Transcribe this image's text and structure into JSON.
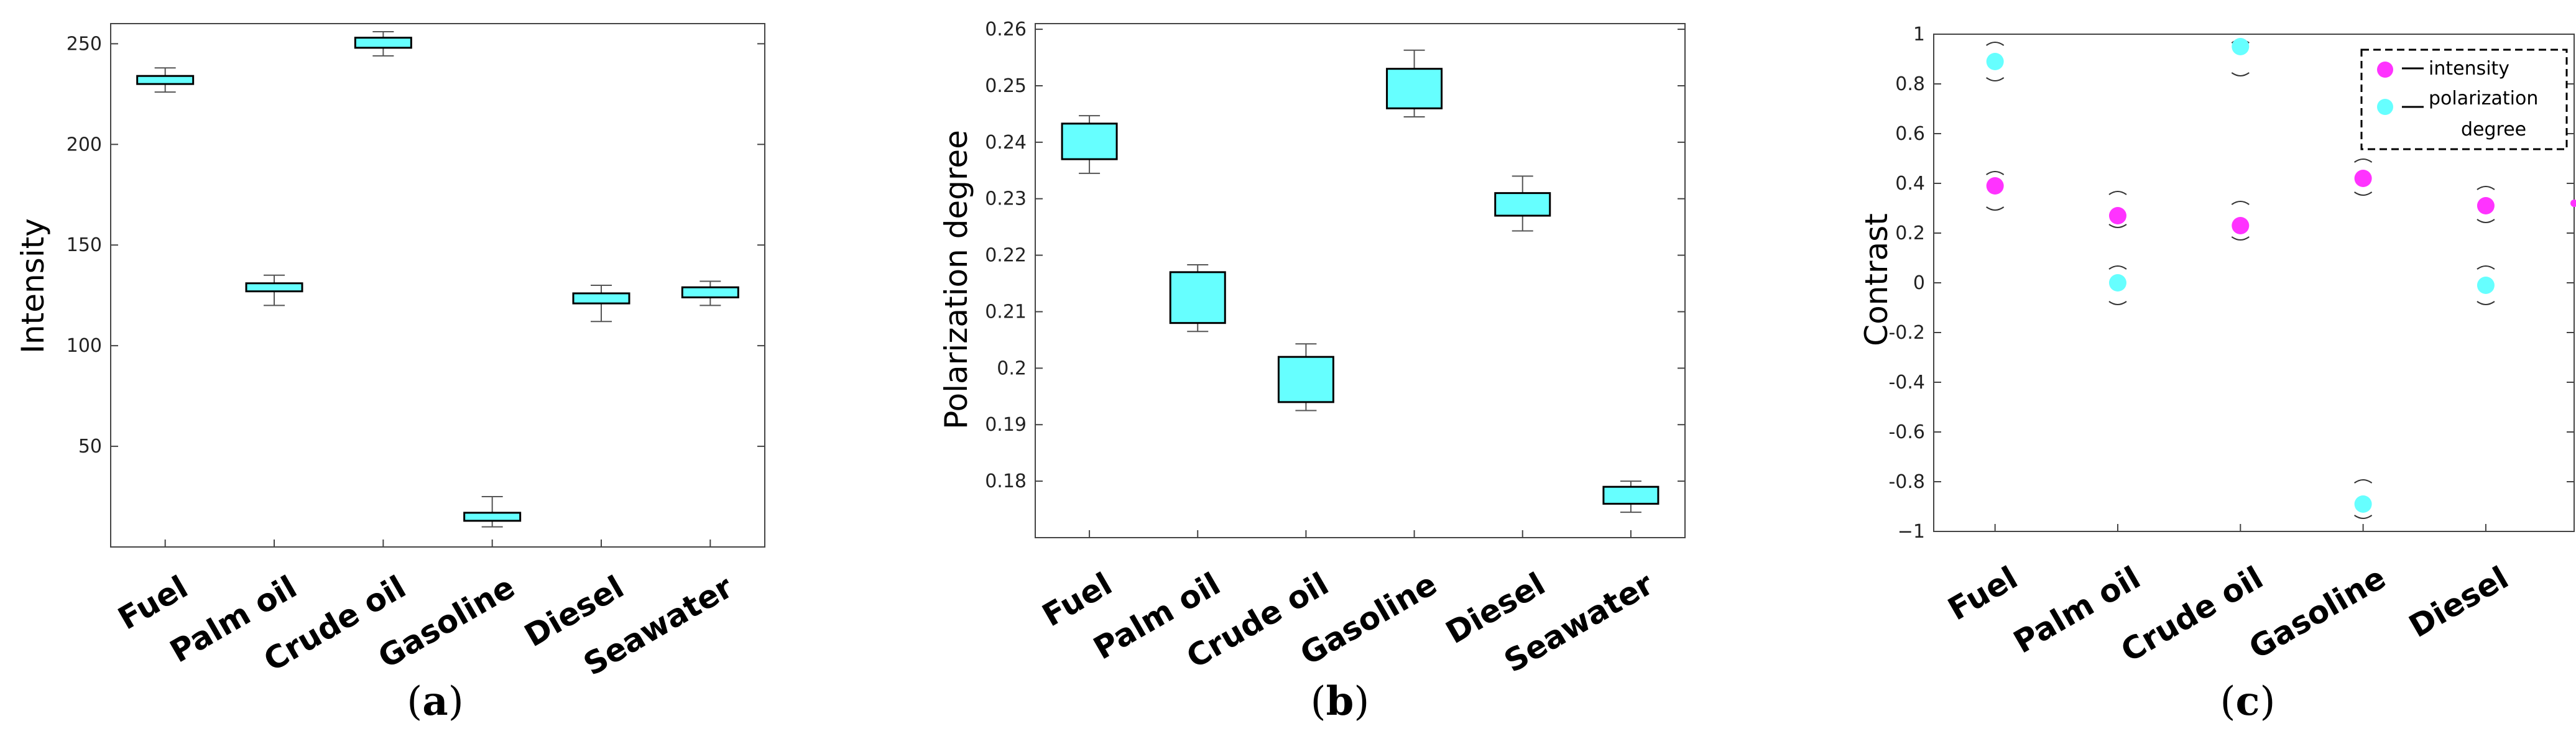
{
  "colors": {
    "box": "#66ffff",
    "intensity": "#ff33ff",
    "polarization": "#66ffff",
    "whisker": "#555555"
  },
  "chart_data": [
    {
      "type": "box",
      "panel_label": {
        "open": "(",
        "letter": "a",
        "close": ")"
      },
      "ylabel": "Intensity",
      "ylim": [
        0,
        260
      ],
      "yticks": [
        "50",
        "100",
        "150",
        "200",
        "250"
      ],
      "categories": [
        "Fuel",
        "Palm oil",
        "Crude oil",
        "Gasoline",
        "Diesel",
        "Seawater"
      ],
      "boxes": [
        {
          "min": 226,
          "q1": 230,
          "q3": 234,
          "max": 238
        },
        {
          "min": 120,
          "q1": 127,
          "q3": 131,
          "max": 135
        },
        {
          "min": 244,
          "q1": 248,
          "q3": 253,
          "max": 256
        },
        {
          "min": 10,
          "q1": 13,
          "q3": 17,
          "max": 25
        },
        {
          "min": 112,
          "q1": 121,
          "q3": 126,
          "max": 130
        },
        {
          "min": 120,
          "q1": 124,
          "q3": 129,
          "max": 132
        }
      ]
    },
    {
      "type": "box",
      "panel_label": {
        "open": "(",
        "letter": "b",
        "close": ")"
      },
      "ylabel": "Polarization degree",
      "ylim": [
        0.17,
        0.261
      ],
      "yticks": [
        "0.18",
        "0.19",
        "0.2",
        "0.21",
        "0.22",
        "0.23",
        "0.24",
        "0.25",
        "0.26"
      ],
      "categories": [
        "Fuel",
        "Palm oil",
        "Crude oil",
        "Gasoline",
        "Diesel",
        "Seawater"
      ],
      "boxes": [
        {
          "min": 0.2345,
          "q1": 0.237,
          "q3": 0.2433,
          "max": 0.2447
        },
        {
          "min": 0.2065,
          "q1": 0.208,
          "q3": 0.217,
          "max": 0.2183
        },
        {
          "min": 0.1925,
          "q1": 0.194,
          "q3": 0.202,
          "max": 0.2043
        },
        {
          "min": 0.2445,
          "q1": 0.246,
          "q3": 0.253,
          "max": 0.2563
        },
        {
          "min": 0.2243,
          "q1": 0.227,
          "q3": 0.231,
          "max": 0.234
        },
        {
          "min": 0.1745,
          "q1": 0.176,
          "q3": 0.179,
          "max": 0.18
        }
      ]
    },
    {
      "type": "scatter",
      "panel_label": {
        "open": "(",
        "letter": "c",
        "close": ")"
      },
      "ylabel": "Contrast",
      "ylim": [
        -1,
        1
      ],
      "yticks": [
        "−1",
        "-0.8",
        "-0.6",
        "-0.4",
        "-0.2",
        "0",
        "0.2",
        "0.4",
        "0.6",
        "0.8",
        "1"
      ],
      "categories": [
        "Fuel",
        "Palm oil",
        "Crude oil",
        "Gasoline",
        "Diesel"
      ],
      "legend": {
        "position": "top-right",
        "intensity": "intensity",
        "polarization_line1": "polarization",
        "polarization_line2": "degree"
      },
      "series": [
        {
          "name": "intensity",
          "values": [
            0.39,
            0.27,
            0.23,
            0.42,
            0.31
          ],
          "upper": [
            0.45,
            0.37,
            0.33,
            0.5,
            0.39
          ],
          "lower": [
            0.29,
            0.22,
            0.17,
            0.35,
            0.24
          ]
        },
        {
          "name": "polarization degree",
          "values": [
            0.89,
            0.0,
            0.95,
            -0.89,
            -0.01
          ],
          "upper": [
            0.97,
            0.07,
            0.98,
            -0.79,
            0.07
          ],
          "lower": [
            0.81,
            -0.09,
            0.83,
            -0.95,
            -0.09
          ]
        }
      ]
    }
  ]
}
